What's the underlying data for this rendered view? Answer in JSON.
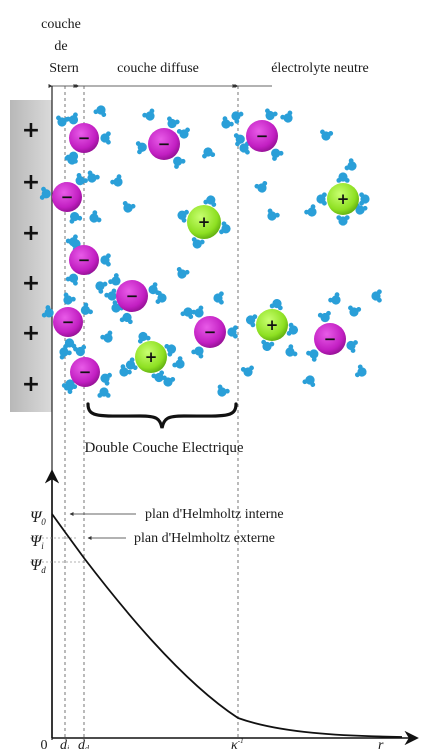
{
  "top_labels": {
    "stern_line1": "couche",
    "stern_line2": "de",
    "stern_line3": "Stern",
    "diffuse": "couche diffuse",
    "neutral": "électrolyte neutre"
  },
  "electrode": {
    "charge_symbol": "+",
    "charge_count": 6
  },
  "ions": {
    "anion_symbol": "−",
    "cation_symbol": "+",
    "anion_color": "#c21fc2",
    "cation_color": "#8ee022",
    "water_color": "#2a9fd8"
  },
  "double_layer_label": "Double Couche Electrique",
  "potential_graph": {
    "y_labels": {
      "psi0": "Ψ",
      "psi0_sub": "0",
      "psii": "Ψ",
      "psii_sub": "i",
      "psid": "Ψ",
      "psid_sub": "d"
    },
    "annotations": {
      "inner_plane": "plan d'Helmholtz interne",
      "outer_plane": "plan d'Helmholtz externe"
    },
    "x_labels": {
      "origin": "0",
      "di": "d",
      "di_sub": "i",
      "dd": "d",
      "dd_sub": "d",
      "kappa": "κ",
      "kappa_sup": "-1",
      "r": "r"
    }
  }
}
